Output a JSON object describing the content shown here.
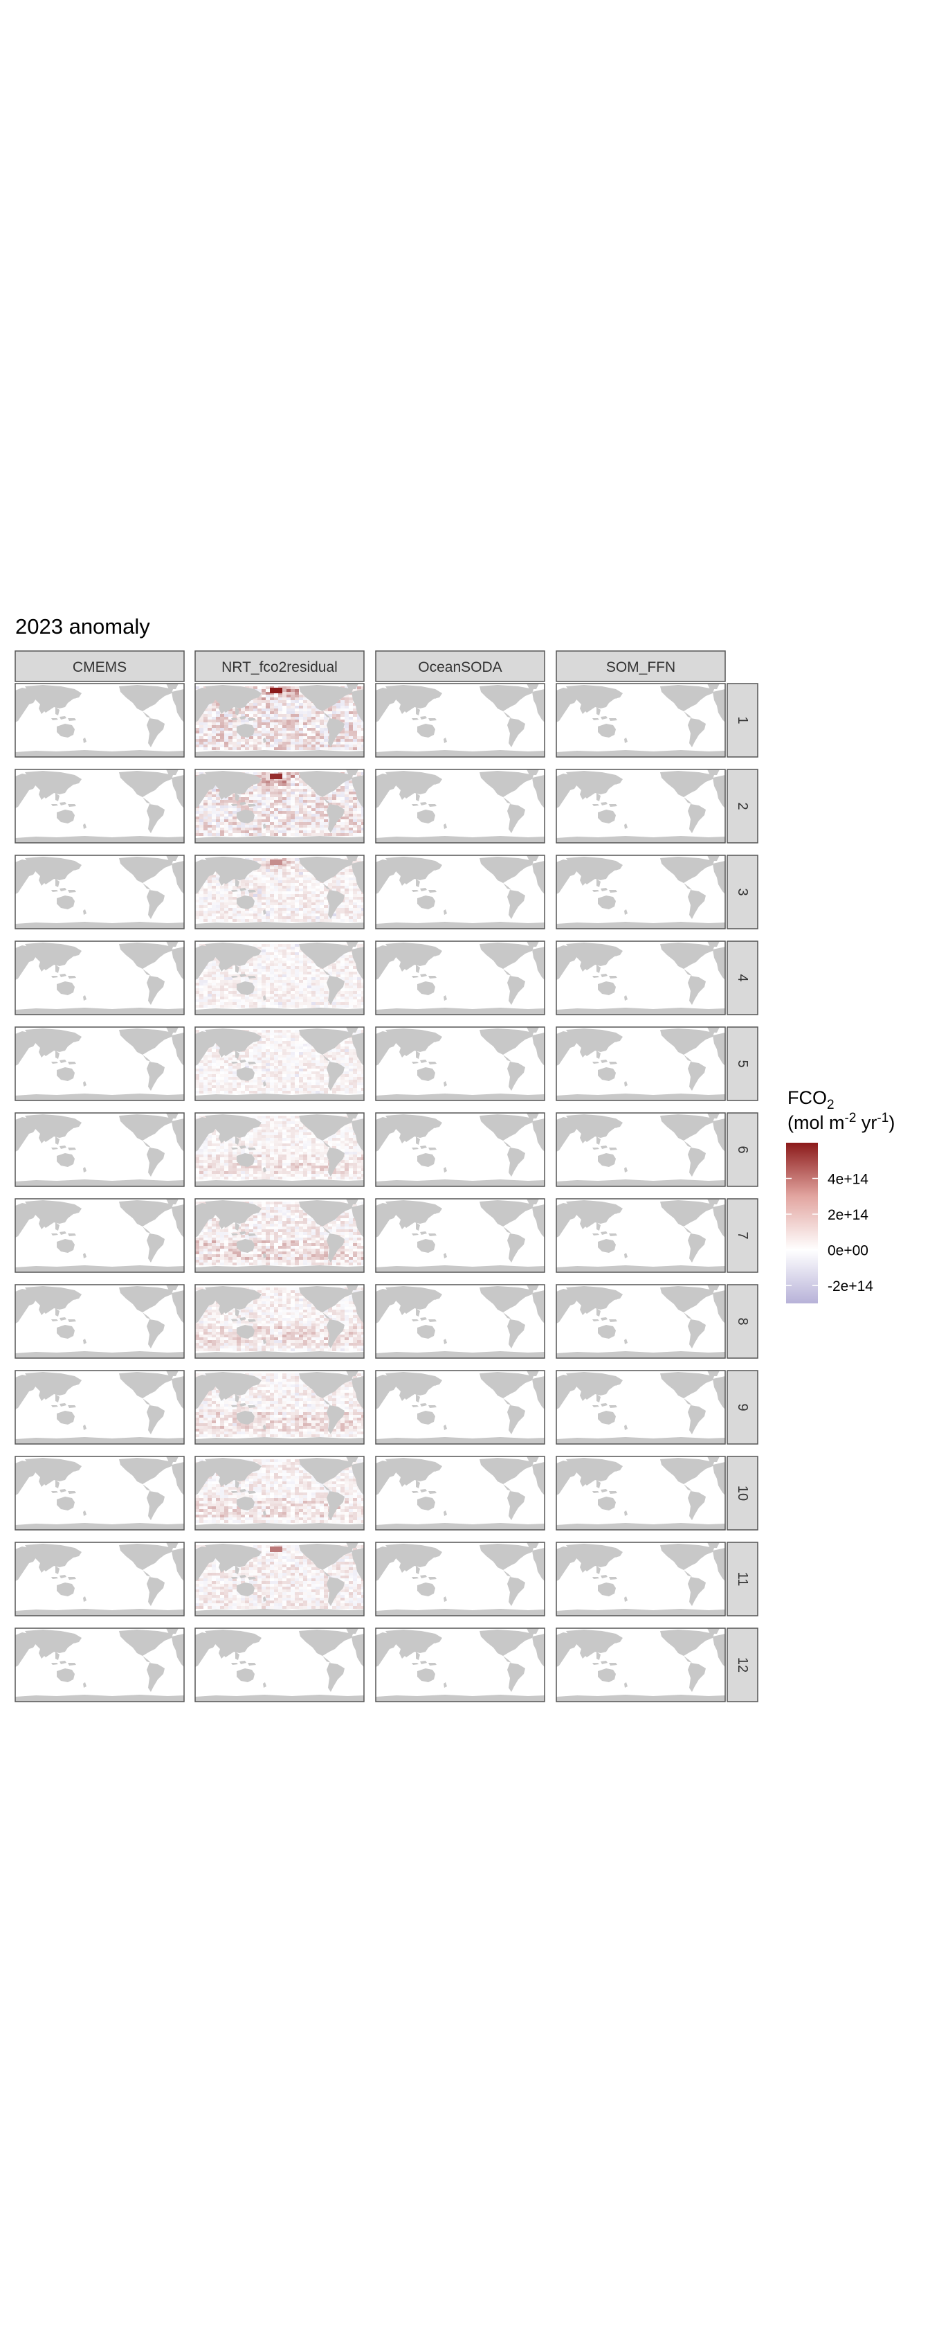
{
  "title": "2023 anomaly",
  "chart_data": {
    "type": "heatmap",
    "title": "2023 anomaly",
    "subtitle": "",
    "facet_columns": [
      "CMEMS",
      "NRT_fco2residual",
      "OceanSODA",
      "SOM_FFN"
    ],
    "facet_rows": [
      "1",
      "2",
      "3",
      "4",
      "5",
      "6",
      "7",
      "8",
      "9",
      "10",
      "11",
      "12"
    ],
    "legend": {
      "title_main": "FCO",
      "title_sub": "2",
      "unit_open": "(mol m",
      "unit_exp1": "-2",
      "unit_mid": " yr",
      "unit_exp2": "-1",
      "unit_close": ")",
      "ticks": [
        {
          "label": "4e+14",
          "value": 400000000000000.0
        },
        {
          "label": "2e+14",
          "value": 200000000000000.0
        },
        {
          "label": "0e+00",
          "value": 0
        },
        {
          "label": "-2e+14",
          "value": -200000000000000.0
        }
      ],
      "range": [
        -300000000000000.0,
        600000000000000.0
      ],
      "colors": {
        "low": "#b7b2d8",
        "mid": "#ffffff",
        "high": "#8b1a1a"
      },
      "placement": "right"
    },
    "land_color": "#c8c8c8",
    "strip_color": "#d9d9d9",
    "active_column": "NRT_fco2residual",
    "anomaly_monthly_peak": [
      {
        "month": "1",
        "max": 600000000000000.0,
        "min": -100000000000000.0
      },
      {
        "month": "2",
        "max": 550000000000000.0,
        "min": -150000000000000.0
      },
      {
        "month": "3",
        "max": 300000000000000.0,
        "min": -150000000000000.0
      },
      {
        "month": "4",
        "max": 250000000000000.0,
        "min": -120000000000000.0
      },
      {
        "month": "5",
        "max": 250000000000000.0,
        "min": -120000000000000.0
      },
      {
        "month": "6",
        "max": 250000000000000.0,
        "min": -80000000000000.0
      },
      {
        "month": "7",
        "max": 350000000000000.0,
        "min": -80000000000000.0
      },
      {
        "month": "8",
        "max": 300000000000000.0,
        "min": -100000000000000.0
      },
      {
        "month": "9",
        "max": 300000000000000.0,
        "min": -100000000000000.0
      },
      {
        "month": "10",
        "max": 300000000000000.0,
        "min": -60000000000000.0
      },
      {
        "month": "11",
        "max": 350000000000000.0,
        "min": -80000000000000.0
      },
      {
        "month": "12",
        "max": 0,
        "min": 0
      }
    ]
  }
}
